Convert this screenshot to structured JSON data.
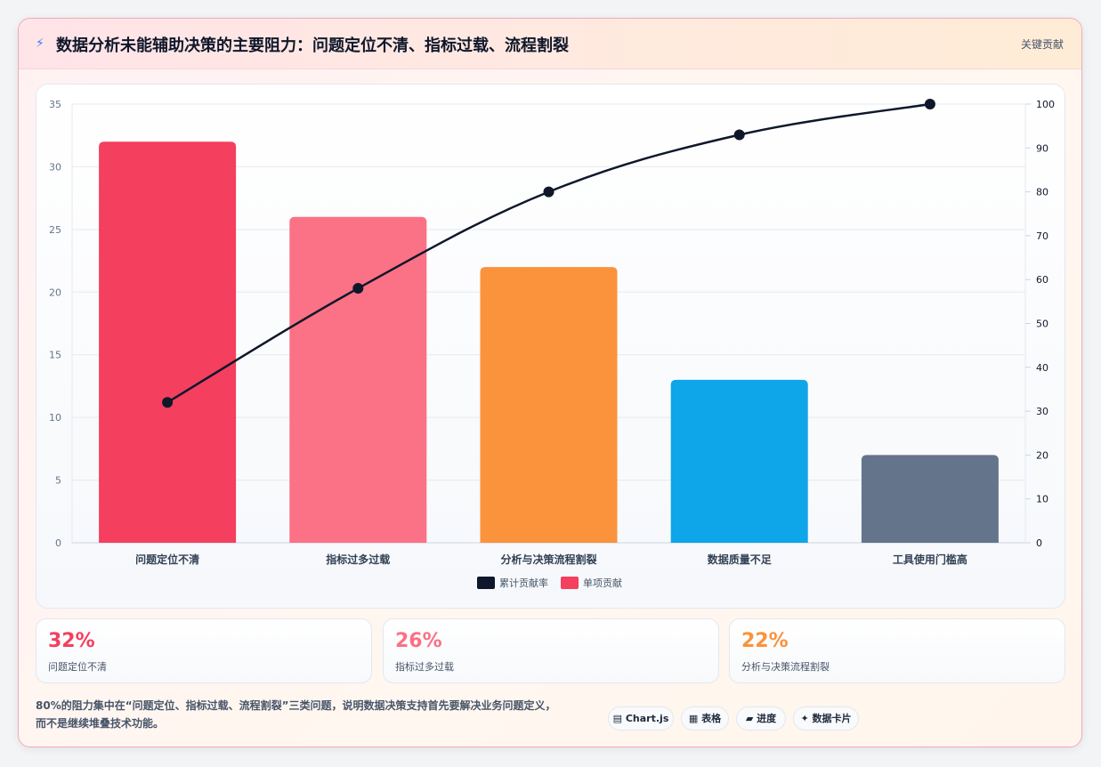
{
  "header": {
    "icon": "lightning-icon",
    "title": "数据分析未能辅助决策的主要阻力：问题定位不清、指标过载、流程割裂",
    "tag": "关键贡献"
  },
  "chart_data": {
    "type": "bar",
    "categories": [
      "问题定位不清",
      "指标过多过载",
      "分析与决策流程割裂",
      "数据质量不足",
      "工具使用门槛高"
    ],
    "series": [
      {
        "name": "单项贡献",
        "type": "bar",
        "axis": "left",
        "values": [
          32,
          26,
          22,
          13,
          7
        ],
        "colors": [
          "#f43f5e",
          "#fb7185",
          "#fb923c",
          "#0ea5e9",
          "#64748b"
        ]
      },
      {
        "name": "累计贡献率",
        "type": "line",
        "axis": "right",
        "values": [
          32,
          58,
          80,
          93,
          100
        ],
        "color": "#0f172a"
      }
    ],
    "ylim_left": [
      0,
      35
    ],
    "yticks_left": [
      0,
      5,
      10,
      15,
      20,
      25,
      30,
      35
    ],
    "ylim_right": [
      0,
      100
    ],
    "yticks_right": [
      0,
      10,
      20,
      30,
      40,
      50,
      60,
      70,
      80,
      90,
      100
    ],
    "grid": true,
    "legend_position": "bottom"
  },
  "stats": [
    {
      "value": "32%",
      "label": "问题定位不清",
      "color": "#f43f5e"
    },
    {
      "value": "26%",
      "label": "指标过多过载",
      "color": "#fb7185"
    },
    {
      "value": "22%",
      "label": "分析与决策流程割裂",
      "color": "#fb923c"
    }
  ],
  "note": {
    "line1": "80%的阻力集中在“问题定位、指标过载、流程割裂”三类问题，说明数据决策支持首先要解决业务问题定义，",
    "line2": "而不是继续堆叠技术功能。"
  },
  "chips": [
    {
      "icon": "chart-icon",
      "glyph": "▤",
      "label": "Chart.js"
    },
    {
      "icon": "table-icon",
      "glyph": "▦",
      "label": "表格"
    },
    {
      "icon": "progress-icon",
      "glyph": "▰",
      "label": "进度"
    },
    {
      "icon": "sparkle-icon",
      "glyph": "✦",
      "label": "数据卡片"
    }
  ]
}
